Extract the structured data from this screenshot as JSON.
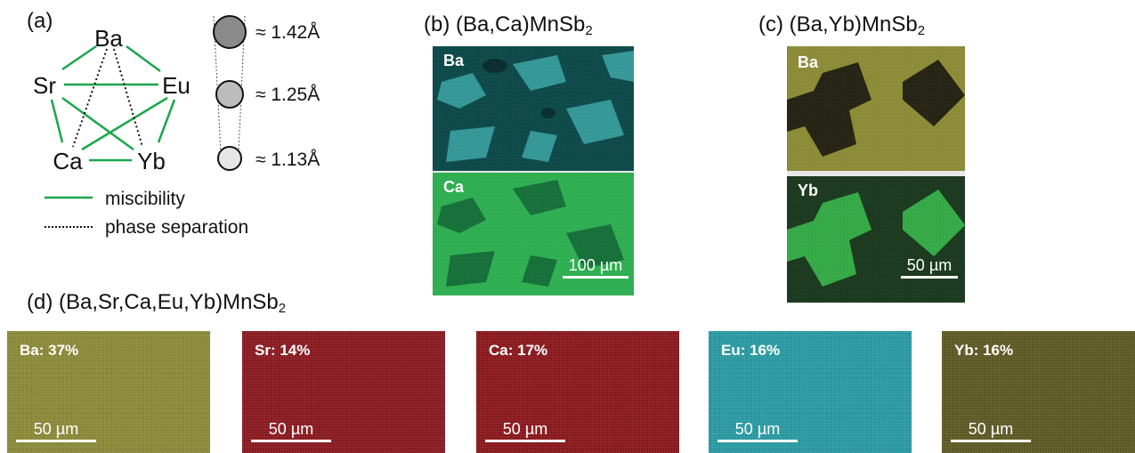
{
  "panel_a": {
    "label": "(a)",
    "elements": {
      "ba": "Ba",
      "sr": "Sr",
      "eu": "Eu",
      "ca": "Ca",
      "yb": "Yb"
    },
    "radii": [
      "≈ 1.42Å",
      "≈ 1.25Å",
      "≈ 1.13Å"
    ],
    "legend": {
      "miscibility": "miscibility",
      "phase_separation": "phase separation"
    },
    "colors": {
      "miscibility": "#1aa64a",
      "phase_separation": "#111111"
    }
  },
  "panel_b": {
    "label_prefix": "(b) (Ba,Ca)MnSb",
    "label_sub": "2",
    "top_label": "Ba",
    "bottom_label": "Ca",
    "scalebar": "100 µm",
    "colors": {
      "ba_bg": "#0f4a4a",
      "ba_grain": "#3aa0a0",
      "ca_bg": "#2fae52",
      "ca_grain": "#17703a"
    }
  },
  "panel_c": {
    "label_prefix": "(c) (Ba,Yb)MnSb",
    "label_sub": "2",
    "top_label": "Ba",
    "bottom_label": "Yb",
    "scalebar": "50 µm",
    "colors": {
      "ba_bg": "#8c8c38",
      "ba_dark": "#262414",
      "yb_bg": "#1c3a1f",
      "yb_bright": "#36a947"
    }
  },
  "panel_d": {
    "label_prefix": "(d) (Ba,Sr,Ca,Eu,Yb)MnSb",
    "label_sub": "2",
    "maps": [
      {
        "label": "Ba: 37%",
        "scalebar": "50 µm",
        "color": "#8c8a3a"
      },
      {
        "label": "Sr: 14%",
        "scalebar": "50 µm",
        "color": "#8a1c22"
      },
      {
        "label": "Ca: 17%",
        "scalebar": "50 µm",
        "color": "#8a1a1e"
      },
      {
        "label": "Eu: 16%",
        "scalebar": "50 µm",
        "color": "#2c9aa2"
      },
      {
        "label": "Yb: 16%",
        "scalebar": "50 µm",
        "color": "#5e5a26"
      }
    ]
  }
}
